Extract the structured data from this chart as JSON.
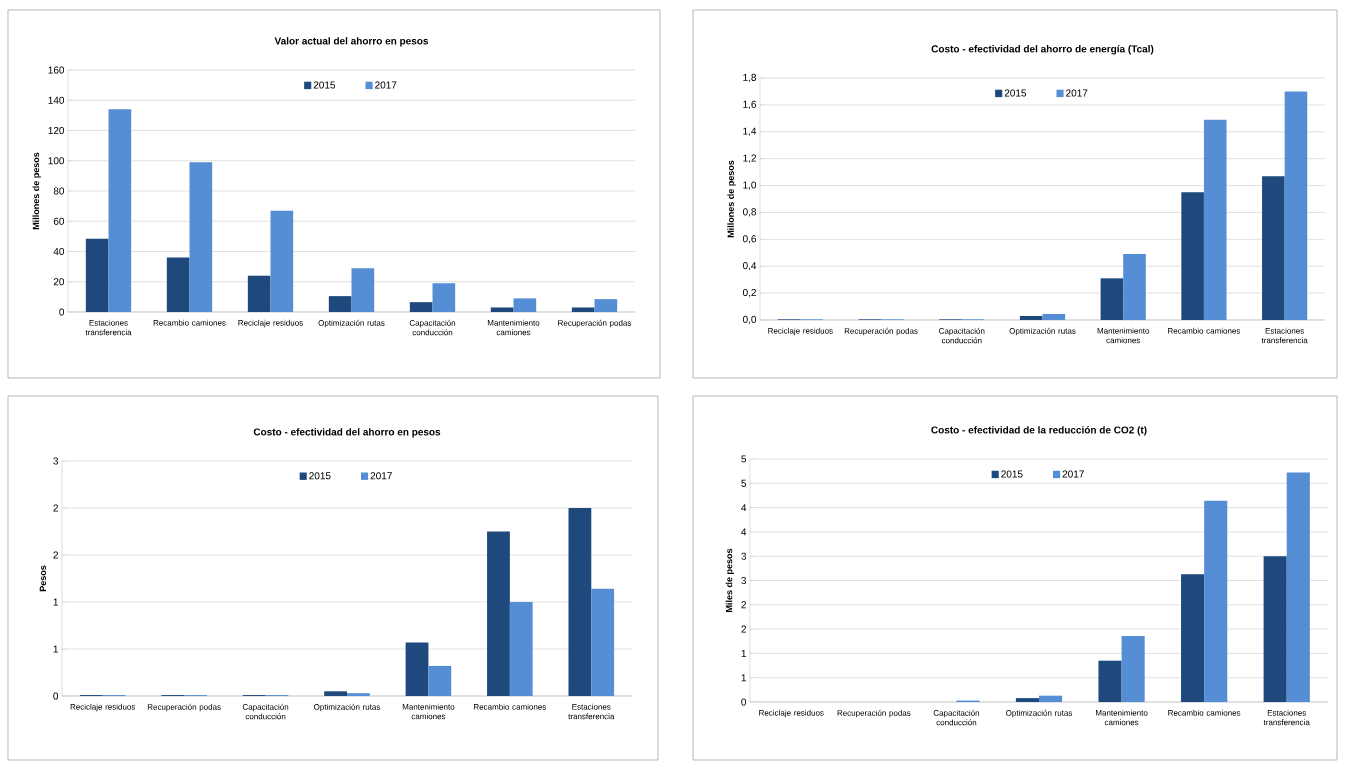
{
  "chart_data": [
    {
      "type": "bar",
      "title": "Valor actual del ahorro en pesos",
      "ylabel": "Millones de pesos",
      "categories": [
        "Estaciones transferencia",
        "Recambio camiones",
        "Reciclaje residuos",
        "Optimización rutas",
        "Capacitación conducción",
        "Mantenimiento camiones",
        "Recuperación podas"
      ],
      "series": [
        {
          "name": "2015",
          "color": "#1f497d",
          "values": [
            48.5,
            36,
            24,
            10.5,
            6.5,
            3,
            3
          ]
        },
        {
          "name": "2017",
          "color": "#558ed5",
          "values": [
            134,
            99,
            67,
            29,
            19,
            9,
            8.5
          ]
        }
      ],
      "ylim": [
        0,
        160
      ],
      "yticks": [
        0,
        20,
        40,
        60,
        80,
        100,
        120,
        140,
        160
      ],
      "grid": "y",
      "legend": "top"
    },
    {
      "type": "bar",
      "title": "Costo - efectividad del ahorro de energía (Tcal)",
      "ylabel": "Millones de pesos",
      "categories": [
        "Reciclaje residuos",
        "Recuperación podas",
        "Capacitación conducción",
        "Optimización rutas",
        "Mantenimiento camiones",
        "Recambio camiones",
        "Estaciones transferencia"
      ],
      "series": [
        {
          "name": "2015",
          "color": "#1f497d",
          "values": [
            0.005,
            0.005,
            0.005,
            0.03,
            0.31,
            0.95,
            1.07
          ]
        },
        {
          "name": "2017",
          "color": "#558ed5",
          "values": [
            0.005,
            0.005,
            0.005,
            0.045,
            0.49,
            1.49,
            1.7
          ]
        }
      ],
      "ylim": [
        0,
        1.8
      ],
      "yticks": [
        {
          "value": 0,
          "label": "0,0"
        },
        {
          "value": 0.2,
          "label": "0,2"
        },
        {
          "value": 0.4,
          "label": "0,4"
        },
        {
          "value": 0.6,
          "label": "0,6"
        },
        {
          "value": 0.8,
          "label": "0,8"
        },
        {
          "value": 1.0,
          "label": "1,0"
        },
        {
          "value": 1.2,
          "label": "1,2"
        },
        {
          "value": 1.4,
          "label": "1,4"
        },
        {
          "value": 1.6,
          "label": "1,6"
        },
        {
          "value": 1.8,
          "label": "1,8"
        }
      ],
      "grid": "y",
      "legend": "top"
    },
    {
      "type": "bar",
      "title": "Costo - efectividad del ahorro en pesos",
      "ylabel": "Pesos",
      "categories": [
        "Reciclaje residuos",
        "Recuperación podas",
        "Capacitación conducción",
        "Optimización rutas",
        "Mantenimiento camiones",
        "Recambio camiones",
        "Estaciones transferencia"
      ],
      "series": [
        {
          "name": "2015",
          "color": "#1f497d",
          "values": [
            0.01,
            0.01,
            0.01,
            0.05,
            0.57,
            1.75,
            2.0
          ]
        },
        {
          "name": "2017",
          "color": "#558ed5",
          "values": [
            0.01,
            0.01,
            0.01,
            0.03,
            0.32,
            1.0,
            1.14
          ]
        }
      ],
      "ylim": [
        0,
        2.5
      ],
      "yticks": [
        {
          "value": 0,
          "label": "0"
        },
        {
          "value": 0.5,
          "label": "1"
        },
        {
          "value": 1.0,
          "label": "1"
        },
        {
          "value": 1.5,
          "label": "2"
        },
        {
          "value": 2.0,
          "label": "2"
        },
        {
          "value": 2.5,
          "label": "3"
        }
      ],
      "grid": "y",
      "legend": "top"
    },
    {
      "type": "bar",
      "title": "Costo - efectividad de la reducción de CO2 (t)",
      "ylabel": "Miles de pesos",
      "categories": [
        "Reciclaje residuos",
        "Recuperación podas",
        "Capacitación conducción",
        "Optimización rutas",
        "Mantenimiento camiones",
        "Recambio camiones",
        "Estaciones transferencia"
      ],
      "series": [
        {
          "name": "2015",
          "color": "#1f497d",
          "values": [
            0,
            0,
            0,
            0.08,
            0.85,
            2.63,
            3.0
          ]
        },
        {
          "name": "2017",
          "color": "#558ed5",
          "values": [
            0,
            0,
            0.03,
            0.13,
            1.36,
            4.14,
            4.72
          ]
        }
      ],
      "ylim": [
        0,
        5
      ],
      "yticks": [
        {
          "value": 0,
          "label": "0"
        },
        {
          "value": 0.5,
          "label": "1"
        },
        {
          "value": 1.0,
          "label": "1"
        },
        {
          "value": 1.5,
          "label": "2"
        },
        {
          "value": 2.0,
          "label": "2"
        },
        {
          "value": 2.5,
          "label": "3"
        },
        {
          "value": 3.0,
          "label": "3"
        },
        {
          "value": 3.5,
          "label": "4"
        },
        {
          "value": 4.0,
          "label": "4"
        },
        {
          "value": 4.5,
          "label": "5"
        },
        {
          "value": 5.0,
          "label": "5"
        }
      ],
      "grid": "y",
      "legend": "top"
    }
  ]
}
